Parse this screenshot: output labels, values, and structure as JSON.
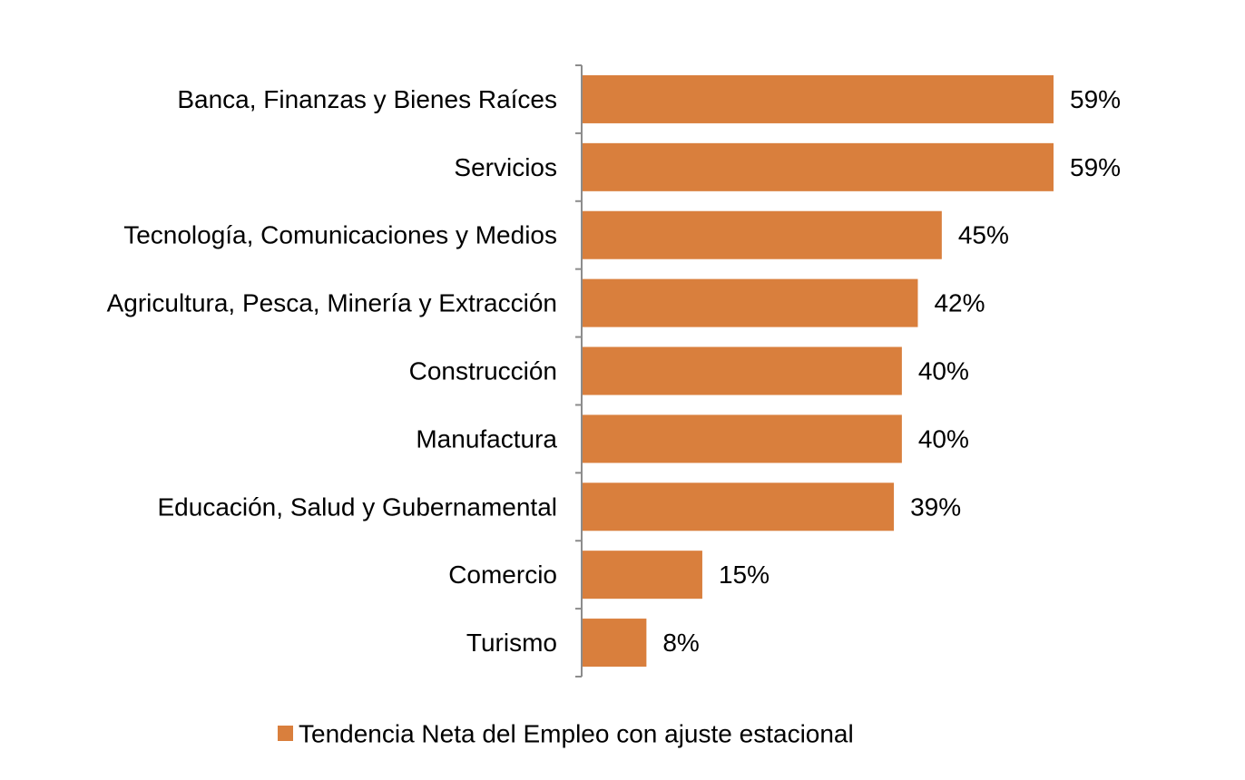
{
  "chart_data": {
    "type": "bar",
    "orientation": "horizontal",
    "title": "",
    "xlabel": "",
    "ylabel": "",
    "categories": [
      "Banca, Finanzas y Bienes Raíces",
      "Servicios",
      "Tecnología, Comunicaciones y Medios",
      "Agricultura, Pesca, Minería y Extracción",
      "Construcción",
      "Manufactura",
      "Educación, Salud y Gubernamental",
      "Comercio",
      "Turismo"
    ],
    "series": [
      {
        "name": "Tendencia Neta del Empleo con ajuste estacional",
        "values": [
          59,
          59,
          45,
          42,
          40,
          40,
          39,
          15,
          8
        ],
        "labels": [
          "59%",
          "59%",
          "45%",
          "42%",
          "40%",
          "40%",
          "39%",
          "15%",
          "8%"
        ],
        "color": "#D97F3D"
      }
    ],
    "xlim": [
      0,
      59
    ],
    "grid": false,
    "legend": "bottom-center",
    "axis_color": "#8C8C8C"
  }
}
